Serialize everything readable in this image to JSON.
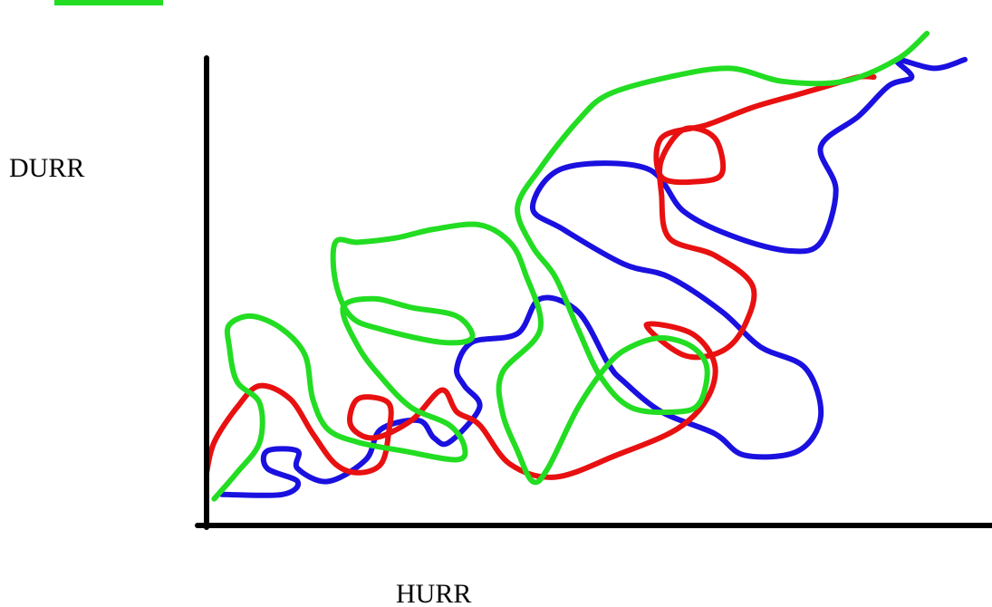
{
  "chart_data": {
    "type": "line",
    "title": "",
    "xlabel": "HURR",
    "ylabel": "DURR",
    "grid": false,
    "legend": "none",
    "series": [
      {
        "color": "#1a10e0",
        "points": [
          [
            0.02,
            0.04
          ],
          [
            0.1,
            0.04
          ],
          [
            0.12,
            0.07
          ],
          [
            0.08,
            0.1
          ],
          [
            0.08,
            0.14
          ],
          [
            0.12,
            0.14
          ],
          [
            0.12,
            0.1
          ],
          [
            0.16,
            0.07
          ],
          [
            0.21,
            0.12
          ],
          [
            0.23,
            0.19
          ],
          [
            0.28,
            0.21
          ],
          [
            0.3,
            0.17
          ],
          [
            0.32,
            0.16
          ],
          [
            0.36,
            0.24
          ],
          [
            0.34,
            0.29
          ],
          [
            0.33,
            0.33
          ],
          [
            0.35,
            0.39
          ],
          [
            0.41,
            0.41
          ],
          [
            0.44,
            0.49
          ],
          [
            0.49,
            0.46
          ],
          [
            0.53,
            0.34
          ],
          [
            0.55,
            0.3
          ],
          [
            0.6,
            0.23
          ],
          [
            0.67,
            0.18
          ],
          [
            0.71,
            0.13
          ],
          [
            0.78,
            0.14
          ],
          [
            0.81,
            0.22
          ],
          [
            0.79,
            0.33
          ],
          [
            0.73,
            0.38
          ],
          [
            0.68,
            0.46
          ],
          [
            0.61,
            0.54
          ],
          [
            0.55,
            0.57
          ],
          [
            0.47,
            0.65
          ],
          [
            0.43,
            0.7
          ],
          [
            0.47,
            0.79
          ],
          [
            0.58,
            0.79
          ],
          [
            0.63,
            0.69
          ],
          [
            0.7,
            0.63
          ],
          [
            0.77,
            0.6
          ],
          [
            0.81,
            0.62
          ],
          [
            0.83,
            0.74
          ],
          [
            0.81,
            0.84
          ],
          [
            0.86,
            0.91
          ],
          [
            0.9,
            0.98
          ],
          [
            0.93,
            1.0
          ],
          [
            0.91,
            1.04
          ],
          [
            0.96,
            1.02
          ],
          [
            1.0,
            1.04
          ]
        ]
      },
      {
        "color": "#e81010",
        "points": [
          [
            0.0,
            0.09
          ],
          [
            0.01,
            0.16
          ],
          [
            0.04,
            0.24
          ],
          [
            0.07,
            0.29
          ],
          [
            0.11,
            0.26
          ],
          [
            0.14,
            0.18
          ],
          [
            0.17,
            0.11
          ],
          [
            0.2,
            0.09
          ],
          [
            0.23,
            0.11
          ],
          [
            0.24,
            0.18
          ],
          [
            0.24,
            0.25
          ],
          [
            0.2,
            0.26
          ],
          [
            0.19,
            0.2
          ],
          [
            0.22,
            0.17
          ],
          [
            0.27,
            0.21
          ],
          [
            0.31,
            0.28
          ],
          [
            0.33,
            0.23
          ],
          [
            0.36,
            0.2
          ],
          [
            0.4,
            0.11
          ],
          [
            0.46,
            0.08
          ],
          [
            0.54,
            0.13
          ],
          [
            0.62,
            0.19
          ],
          [
            0.66,
            0.26
          ],
          [
            0.67,
            0.34
          ],
          [
            0.64,
            0.41
          ],
          [
            0.58,
            0.43
          ],
          [
            0.63,
            0.36
          ],
          [
            0.68,
            0.37
          ],
          [
            0.71,
            0.43
          ],
          [
            0.72,
            0.52
          ],
          [
            0.67,
            0.59
          ],
          [
            0.61,
            0.63
          ],
          [
            0.6,
            0.73
          ],
          [
            0.6,
            0.81
          ],
          [
            0.63,
            0.88
          ],
          [
            0.67,
            0.86
          ],
          [
            0.68,
            0.78
          ],
          [
            0.65,
            0.76
          ],
          [
            0.6,
            0.77
          ],
          [
            0.6,
            0.86
          ],
          [
            0.66,
            0.89
          ],
          [
            0.72,
            0.93
          ],
          [
            0.78,
            0.96
          ],
          [
            0.82,
            0.98
          ],
          [
            0.86,
            1.0
          ],
          [
            0.88,
            1.0
          ]
        ]
      },
      {
        "color": "#22dd22",
        "points": [
          [
            0.01,
            0.03
          ],
          [
            0.04,
            0.09
          ],
          [
            0.07,
            0.16
          ],
          [
            0.07,
            0.25
          ],
          [
            0.04,
            0.3
          ],
          [
            0.03,
            0.38
          ],
          [
            0.03,
            0.43
          ],
          [
            0.06,
            0.45
          ],
          [
            0.1,
            0.42
          ],
          [
            0.13,
            0.36
          ],
          [
            0.14,
            0.26
          ],
          [
            0.16,
            0.19
          ],
          [
            0.2,
            0.16
          ],
          [
            0.26,
            0.14
          ],
          [
            0.33,
            0.12
          ],
          [
            0.34,
            0.15
          ],
          [
            0.32,
            0.2
          ],
          [
            0.27,
            0.24
          ],
          [
            0.23,
            0.31
          ],
          [
            0.2,
            0.38
          ],
          [
            0.18,
            0.47
          ],
          [
            0.22,
            0.49
          ],
          [
            0.27,
            0.47
          ],
          [
            0.33,
            0.45
          ],
          [
            0.35,
            0.4
          ],
          [
            0.31,
            0.39
          ],
          [
            0.23,
            0.42
          ],
          [
            0.19,
            0.45
          ],
          [
            0.17,
            0.53
          ],
          [
            0.17,
            0.62
          ],
          [
            0.2,
            0.62
          ],
          [
            0.25,
            0.63
          ],
          [
            0.3,
            0.65
          ],
          [
            0.36,
            0.66
          ],
          [
            0.4,
            0.62
          ],
          [
            0.42,
            0.55
          ],
          [
            0.44,
            0.42
          ],
          [
            0.39,
            0.32
          ],
          [
            0.39,
            0.23
          ],
          [
            0.41,
            0.14
          ],
          [
            0.43,
            0.07
          ],
          [
            0.45,
            0.1
          ],
          [
            0.49,
            0.24
          ],
          [
            0.53,
            0.34
          ],
          [
            0.56,
            0.38
          ],
          [
            0.6,
            0.4
          ],
          [
            0.64,
            0.38
          ],
          [
            0.66,
            0.33
          ],
          [
            0.65,
            0.25
          ],
          [
            0.62,
            0.23
          ],
          [
            0.56,
            0.24
          ],
          [
            0.52,
            0.31
          ],
          [
            0.49,
            0.42
          ],
          [
            0.46,
            0.54
          ],
          [
            0.43,
            0.61
          ],
          [
            0.41,
            0.7
          ],
          [
            0.44,
            0.79
          ],
          [
            0.49,
            0.9
          ],
          [
            0.53,
            0.96
          ],
          [
            0.61,
            1.0
          ],
          [
            0.69,
            1.02
          ],
          [
            0.76,
            0.99
          ],
          [
            0.84,
            0.99
          ],
          [
            0.91,
            1.04
          ],
          [
            0.95,
            1.1
          ]
        ]
      }
    ]
  }
}
